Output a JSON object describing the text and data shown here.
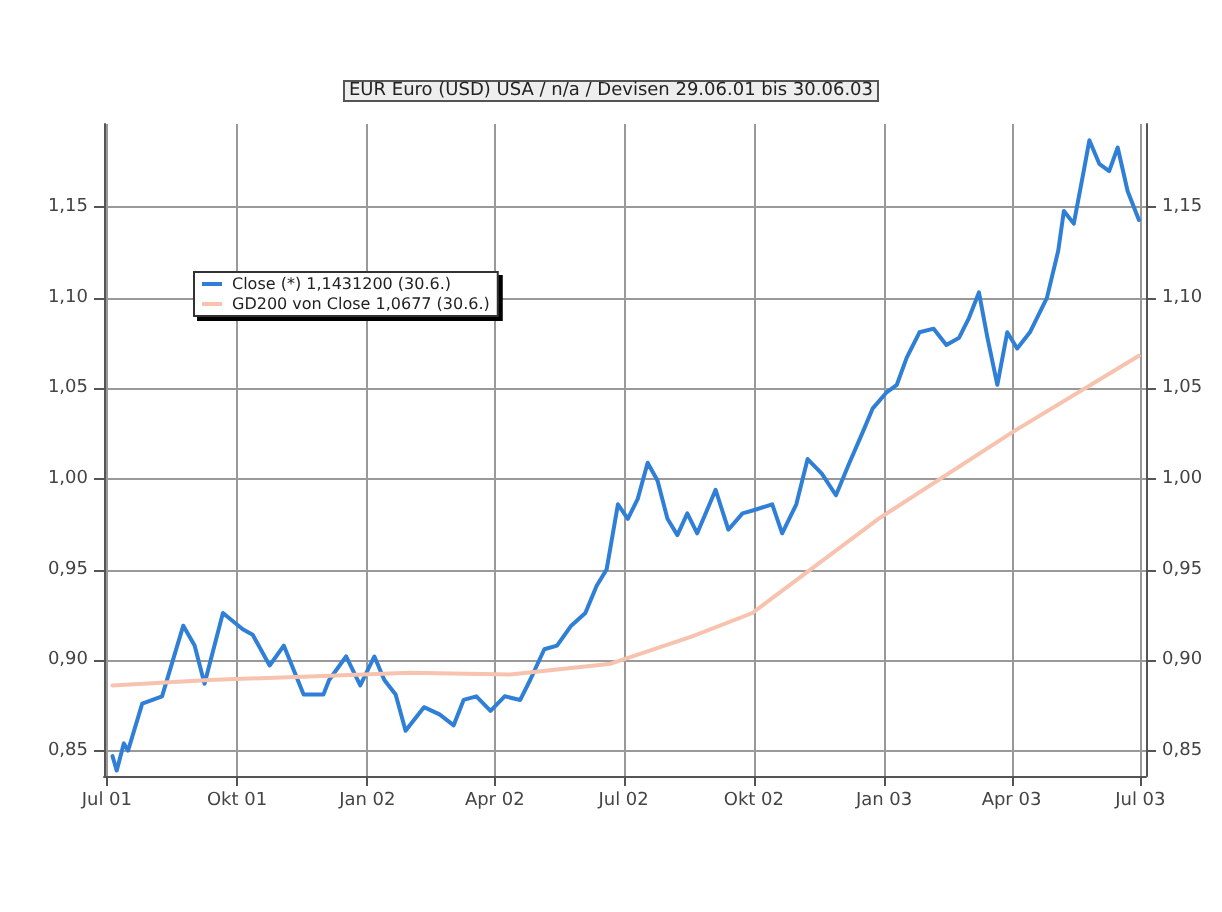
{
  "chart_data": {
    "type": "line",
    "title": "EUR Euro (USD) USA / n/a / Devisen 29.06.01 bis 30.06.03",
    "xlim": [
      "2001-06-29",
      "2003-07-05"
    ],
    "xticks": [
      {
        "value": "2001-07-01",
        "label": "Jul 01"
      },
      {
        "value": "2001-10-01",
        "label": "Okt 01"
      },
      {
        "value": "2002-01-01",
        "label": "Jan 02"
      },
      {
        "value": "2002-04-01",
        "label": "Apr 02"
      },
      {
        "value": "2002-07-01",
        "label": "Jul 02"
      },
      {
        "value": "2002-10-01",
        "label": "Okt 02"
      },
      {
        "value": "2003-01-01",
        "label": "Jan 03"
      },
      {
        "value": "2003-04-01",
        "label": "Apr 03"
      },
      {
        "value": "2003-07-01",
        "label": "Jul 03"
      }
    ],
    "ylim": [
      0.836,
      1.196
    ],
    "yticks": [
      {
        "value": 0.85,
        "label": "0,85"
      },
      {
        "value": 0.9,
        "label": "0,90"
      },
      {
        "value": 0.95,
        "label": "0,95"
      },
      {
        "value": 1.0,
        "label": "1,00"
      },
      {
        "value": 1.05,
        "label": "1,05"
      },
      {
        "value": 1.1,
        "label": "1,10"
      },
      {
        "value": 1.15,
        "label": "1,15"
      }
    ],
    "y2lim": [
      0.836,
      1.196
    ],
    "y2ticks": [
      {
        "value": 0.85,
        "label": "0,85"
      },
      {
        "value": 0.9,
        "label": "0,90"
      },
      {
        "value": 0.95,
        "label": "0,95"
      },
      {
        "value": 1.0,
        "label": "1,00"
      },
      {
        "value": 1.05,
        "label": "1,05"
      },
      {
        "value": 1.1,
        "label": "1,10"
      },
      {
        "value": 1.15,
        "label": "1,15"
      }
    ],
    "grid": true,
    "legend": "top left",
    "marker": "none",
    "line_style": "solid",
    "series": [
      {
        "name": "Close (*) 1,1431200 (30.6.)",
        "color": "#2f7fd6",
        "x": [
          "2001-07-05",
          "2001-07-08",
          "2001-07-13",
          "2001-07-16",
          "2001-07-26",
          "2001-08-09",
          "2001-08-24",
          "2001-09-01",
          "2001-09-08",
          "2001-09-21",
          "2001-10-05",
          "2001-10-12",
          "2001-10-24",
          "2001-11-03",
          "2001-11-17",
          "2001-12-01",
          "2001-12-05",
          "2001-12-17",
          "2001-12-27",
          "2002-01-06",
          "2002-01-13",
          "2002-01-21",
          "2002-01-28",
          "2002-02-10",
          "2002-02-21",
          "2002-03-03",
          "2002-03-10",
          "2002-03-19",
          "2002-03-29",
          "2002-04-08",
          "2002-04-19",
          "2002-04-26",
          "2002-05-06",
          "2002-05-15",
          "2002-05-25",
          "2002-06-04",
          "2002-06-12",
          "2002-06-19",
          "2002-06-27",
          "2002-07-04",
          "2002-07-11",
          "2002-07-18",
          "2002-07-25",
          "2002-08-01",
          "2002-08-08",
          "2002-08-15",
          "2002-08-22",
          "2002-09-04",
          "2002-09-13",
          "2002-09-23",
          "2002-10-02",
          "2002-10-14",
          "2002-10-21",
          "2002-10-31",
          "2002-11-08",
          "2002-11-18",
          "2002-11-28",
          "2002-12-07",
          "2002-12-17",
          "2002-12-24",
          "2003-01-03",
          "2003-01-10",
          "2003-01-17",
          "2003-01-26",
          "2003-02-05",
          "2003-02-14",
          "2003-02-23",
          "2003-03-02",
          "2003-03-09",
          "2003-03-15",
          "2003-03-22",
          "2003-03-29",
          "2003-04-05",
          "2003-04-14",
          "2003-04-26",
          "2003-05-04",
          "2003-05-08",
          "2003-05-15",
          "2003-05-22",
          "2003-05-26",
          "2003-06-02",
          "2003-06-09",
          "2003-06-15",
          "2003-06-22",
          "2003-06-30"
        ],
        "values": [
          0.847,
          0.839,
          0.854,
          0.85,
          0.876,
          0.88,
          0.919,
          0.908,
          0.887,
          0.926,
          0.917,
          0.914,
          0.897,
          0.908,
          0.881,
          0.881,
          0.889,
          0.902,
          0.886,
          0.902,
          0.889,
          0.881,
          0.861,
          0.874,
          0.87,
          0.864,
          0.878,
          0.88,
          0.872,
          0.88,
          0.878,
          0.889,
          0.906,
          0.908,
          0.919,
          0.926,
          0.941,
          0.95,
          0.986,
          0.978,
          0.989,
          1.009,
          0.999,
          0.978,
          0.969,
          0.981,
          0.97,
          0.994,
          0.972,
          0.981,
          0.983,
          0.986,
          0.97,
          0.986,
          1.011,
          1.003,
          0.991,
          1.008,
          1.026,
          1.039,
          1.048,
          1.052,
          1.067,
          1.081,
          1.083,
          1.074,
          1.078,
          1.089,
          1.103,
          1.078,
          1.052,
          1.081,
          1.072,
          1.081,
          1.1,
          1.126,
          1.148,
          1.141,
          1.17,
          1.187,
          1.174,
          1.17,
          1.183,
          1.159,
          1.143
        ]
      },
      {
        "name": "GD200 von Close 1,0677 (30.6.)",
        "color": "#f7c2ae",
        "x": [
          "2001-07-05",
          "2001-09-11",
          "2001-11-21",
          "2002-01-31",
          "2002-04-12",
          "2002-06-22",
          "2002-08-18",
          "2002-09-30",
          "2002-12-28",
          "2003-04-02",
          "2003-06-30"
        ],
        "values": [
          0.886,
          0.889,
          0.891,
          0.893,
          0.892,
          0.898,
          0.913,
          0.926,
          0.978,
          1.026,
          1.068
        ]
      }
    ]
  }
}
